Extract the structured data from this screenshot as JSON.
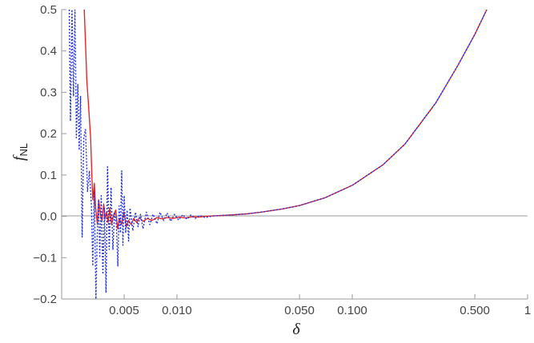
{
  "chart_data": {
    "type": "line",
    "title": "",
    "xlabel": "δ",
    "ylabel": {
      "main": "f",
      "sub": "NL"
    },
    "xscale": "log",
    "xlim": [
      0.0022,
      1.0
    ],
    "ylim": [
      -0.2,
      0.5
    ],
    "grid": false,
    "legend": "none",
    "frame": "left-bottom",
    "zero_line": true,
    "x_ticks": [
      {
        "value": 0.005,
        "label": "0.005"
      },
      {
        "value": 0.01,
        "label": "0.010"
      },
      {
        "value": 0.05,
        "label": "0.050"
      },
      {
        "value": 0.1,
        "label": "0.100"
      },
      {
        "value": 0.5,
        "label": "0.500"
      },
      {
        "value": 1,
        "label": "1"
      }
    ],
    "y_ticks": [
      {
        "value": -0.2,
        "label": "−0.2"
      },
      {
        "value": -0.1,
        "label": "−0.1"
      },
      {
        "value": 0.0,
        "label": "0.0"
      },
      {
        "value": 0.1,
        "label": "0.1"
      },
      {
        "value": 0.2,
        "label": "0.2"
      },
      {
        "value": 0.3,
        "label": "0.3"
      },
      {
        "value": 0.4,
        "label": "0.4"
      },
      {
        "value": 0.5,
        "label": "0.5"
      }
    ],
    "series": [
      {
        "color": "#e8262a",
        "style": "solid",
        "points": [
          [
            0.00296,
            0.5
          ],
          [
            0.00301,
            0.42
          ],
          [
            0.00306,
            0.33
          ],
          [
            0.00313,
            0.27
          ],
          [
            0.00322,
            0.19
          ],
          [
            0.00327,
            0.1
          ],
          [
            0.00331,
            0.04
          ],
          [
            0.00338,
            0.08
          ],
          [
            0.00344,
            0.02
          ],
          [
            0.00352,
            -0.02
          ],
          [
            0.00358,
            0.04
          ],
          [
            0.00366,
            0.005
          ],
          [
            0.00374,
            -0.01
          ],
          [
            0.00382,
            0.03
          ],
          [
            0.0039,
            -0.005
          ],
          [
            0.00397,
            0.01
          ],
          [
            0.00405,
            -0.015
          ],
          [
            0.00414,
            0.02
          ],
          [
            0.00424,
            -0.02
          ],
          [
            0.00436,
            0.005
          ],
          [
            0.00448,
            0.015
          ],
          [
            0.00459,
            -0.03
          ],
          [
            0.0047,
            -0.005
          ],
          [
            0.00483,
            -0.02
          ],
          [
            0.00498,
            0.01
          ],
          [
            0.00515,
            -0.025
          ],
          [
            0.0053,
            -0.01
          ],
          [
            0.00548,
            -0.02
          ],
          [
            0.00567,
            -0.005
          ],
          [
            0.0059,
            -0.015
          ],
          [
            0.0061,
            -0.003
          ],
          [
            0.0064,
            -0.012
          ],
          [
            0.0068,
            -0.005
          ],
          [
            0.0072,
            -0.01
          ],
          [
            0.0077,
            -0.003
          ],
          [
            0.0082,
            -0.006
          ],
          [
            0.0088,
            -0.003
          ],
          [
            0.0095,
            -0.005
          ],
          [
            0.0103,
            -0.002
          ],
          [
            0.0112,
            -0.004
          ],
          [
            0.0122,
            -0.001
          ],
          [
            0.0133,
            -0.002
          ],
          [
            0.0145,
            0.0
          ],
          [
            0.016,
            0.001
          ],
          [
            0.02,
            0.003
          ],
          [
            0.025,
            0.006
          ],
          [
            0.03,
            0.01
          ],
          [
            0.04,
            0.018
          ],
          [
            0.05,
            0.026
          ],
          [
            0.07,
            0.045
          ],
          [
            0.1,
            0.075
          ],
          [
            0.15,
            0.125
          ],
          [
            0.2,
            0.175
          ],
          [
            0.3,
            0.275
          ],
          [
            0.4,
            0.365
          ],
          [
            0.5,
            0.44
          ],
          [
            0.585,
            0.5
          ]
        ]
      },
      {
        "color": "#2233dd",
        "style": "dotted",
        "points": [
          [
            0.00243,
            0.5
          ],
          [
            0.00247,
            0.23
          ],
          [
            0.00252,
            0.5
          ],
          [
            0.00257,
            0.29
          ],
          [
            0.00262,
            0.5
          ],
          [
            0.00267,
            0.19
          ],
          [
            0.00272,
            0.32
          ],
          [
            0.00277,
            0.16
          ],
          [
            0.00282,
            0.29
          ],
          [
            0.00288,
            -0.05
          ],
          [
            0.00294,
            0.19
          ],
          [
            0.00301,
            0.21
          ],
          [
            0.00309,
            0.06
          ],
          [
            0.00317,
            0.11
          ],
          [
            0.00325,
            0.03
          ],
          [
            0.00331,
            -0.12
          ],
          [
            0.00338,
            0.06
          ],
          [
            0.00345,
            -0.2
          ],
          [
            0.00351,
            -0.05
          ],
          [
            0.00357,
            0.04
          ],
          [
            0.00363,
            -0.1
          ],
          [
            0.0037,
            0.05
          ],
          [
            0.00378,
            -0.14
          ],
          [
            0.00386,
            0.02
          ],
          [
            0.00394,
            -0.185
          ],
          [
            0.00402,
            0.12
          ],
          [
            0.00411,
            -0.08
          ],
          [
            0.00421,
            0.07
          ],
          [
            0.00431,
            -0.08
          ],
          [
            0.00441,
            0.01
          ],
          [
            0.00451,
            -0.02
          ],
          [
            0.0046,
            -0.12
          ],
          [
            0.00468,
            0.025
          ],
          [
            0.00476,
            -0.04
          ],
          [
            0.00484,
            0.11
          ],
          [
            0.00492,
            -0.07
          ],
          [
            0.005,
            0.05
          ],
          [
            0.0051,
            -0.04
          ],
          [
            0.0052,
            0.015
          ],
          [
            0.0053,
            -0.06
          ],
          [
            0.0054,
            0.02
          ],
          [
            0.0056,
            -0.035
          ],
          [
            0.0058,
            0.01
          ],
          [
            0.006,
            -0.025
          ],
          [
            0.0062,
            0.005
          ],
          [
            0.0064,
            -0.03
          ],
          [
            0.0067,
            0.01
          ],
          [
            0.007,
            -0.02
          ],
          [
            0.0073,
            0.005
          ],
          [
            0.0077,
            -0.018
          ],
          [
            0.008,
            0.01
          ],
          [
            0.0084,
            -0.01
          ],
          [
            0.0088,
            0.008
          ],
          [
            0.0092,
            -0.012
          ],
          [
            0.0097,
            0.005
          ],
          [
            0.0102,
            -0.009
          ],
          [
            0.0108,
            0.004
          ],
          [
            0.0114,
            -0.007
          ],
          [
            0.012,
            0.003
          ],
          [
            0.0127,
            -0.005
          ],
          [
            0.0135,
            0.002
          ],
          [
            0.0145,
            -0.003
          ],
          [
            0.016,
            0.001
          ],
          [
            0.02,
            0.003
          ],
          [
            0.025,
            0.006
          ],
          [
            0.03,
            0.01
          ],
          [
            0.04,
            0.018
          ],
          [
            0.05,
            0.026
          ],
          [
            0.07,
            0.045
          ],
          [
            0.1,
            0.075
          ],
          [
            0.15,
            0.125
          ],
          [
            0.2,
            0.175
          ],
          [
            0.3,
            0.275
          ],
          [
            0.4,
            0.365
          ],
          [
            0.5,
            0.44
          ],
          [
            0.585,
            0.5
          ]
        ]
      }
    ]
  }
}
